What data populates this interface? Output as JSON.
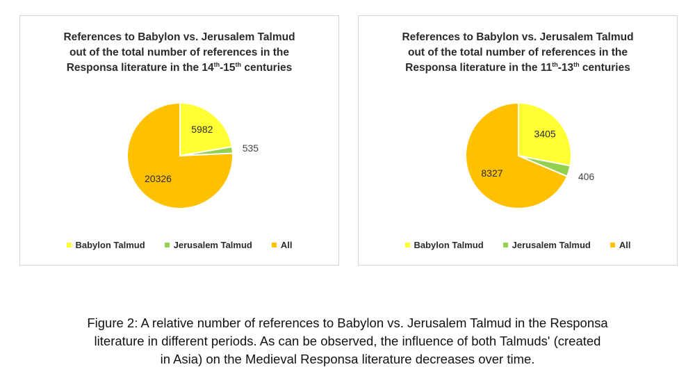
{
  "chart_data": [
    {
      "type": "pie",
      "title": {
        "line1": "References to Babylon vs. Jerusalem Talmud",
        "line2": "out of the total number of references in the",
        "line3_pre": "Responsa literature in the 14",
        "sup1": "th",
        "line3_mid": "-15",
        "sup2": "th",
        "line3_post": " centuries"
      },
      "categories": [
        "Babylon Talmud",
        "Jerusalem Talmud",
        "All"
      ],
      "values": [
        5982,
        535,
        20326
      ],
      "labels": [
        "5982",
        "535",
        "20326"
      ],
      "colors": [
        "#ffff33",
        "#92d050",
        "#ffc000"
      ],
      "legend_position": "bottom"
    },
    {
      "type": "pie",
      "title": {
        "line1": "References to Babylon vs. Jerusalem Talmud",
        "line2": "out of the total number of references in the",
        "line3_pre": "Responsa literature in the 11",
        "sup1": "th",
        "line3_mid": "-13",
        "sup2": "th",
        "line3_post": " centuries"
      },
      "categories": [
        "Babylon Talmud",
        "Jerusalem Talmud",
        "All"
      ],
      "values": [
        3405,
        406,
        8327
      ],
      "labels": [
        "3405",
        "406",
        "8327"
      ],
      "colors": [
        "#ffff33",
        "#92d050",
        "#ffc000"
      ],
      "legend_position": "bottom"
    }
  ],
  "caption": {
    "line1": "Figure 2: A relative number of references to Babylon vs. Jerusalem Talmud in the Responsa",
    "line2": "literature in different periods. As can be observed, the influence of both Talmuds' (created",
    "line3": "in Asia) on the Medieval Responsa literature decreases over time."
  }
}
